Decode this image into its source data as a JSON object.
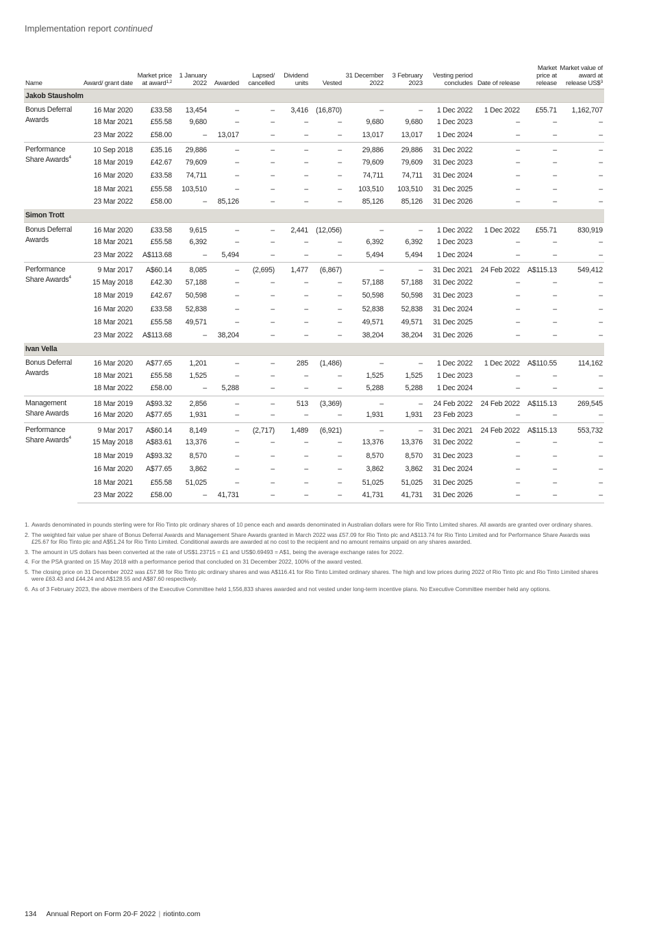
{
  "header": {
    "title": "Implementation report",
    "title_suffix": "continued"
  },
  "columns": [
    {
      "label": "Name",
      "sup": ""
    },
    {
      "label": "Award/ grant date",
      "sup": ""
    },
    {
      "label": "Market price at award",
      "sup": "1,2"
    },
    {
      "label": "1 January 2022",
      "sup": ""
    },
    {
      "label": "Awarded",
      "sup": ""
    },
    {
      "label": "Lapsed/ cancelled",
      "sup": ""
    },
    {
      "label": "Dividend units",
      "sup": ""
    },
    {
      "label": "Vested",
      "sup": ""
    },
    {
      "label": "31 December 2022",
      "sup": ""
    },
    {
      "label": "3 February 2023",
      "sup": ""
    },
    {
      "label": "Vesting period concludes",
      "sup": ""
    },
    {
      "label": "Date of release",
      "sup": ""
    },
    {
      "label": "Market price at release",
      "sup": ""
    },
    {
      "label": "Market value of award at release US$",
      "sup": "3"
    }
  ],
  "people": [
    {
      "name": "Jakob Stausholm",
      "groups": [
        {
          "name": "Bonus Deferral Awards",
          "sup": "",
          "rows": [
            [
              "16 Mar 2020",
              "£33.58",
              "13,454",
              "–",
              "–",
              "3,416",
              "(16,870)",
              "–",
              "–",
              "1 Dec 2022",
              "1 Dec 2022",
              "£55.71",
              "1,162,707"
            ],
            [
              "18 Mar 2021",
              "£55.58",
              "9,680",
              "–",
              "–",
              "–",
              "–",
              "9,680",
              "9,680",
              "1 Dec 2023",
              "–",
              "–",
              "–"
            ],
            [
              "23 Mar 2022",
              "£58.00",
              "–",
              "13,017",
              "–",
              "–",
              "–",
              "13,017",
              "13,017",
              "1 Dec 2024",
              "–",
              "–",
              "–"
            ]
          ]
        },
        {
          "name": "Performance Share Awards",
          "sup": "4",
          "rows": [
            [
              "10 Sep 2018",
              "£35.16",
              "29,886",
              "–",
              "–",
              "–",
              "–",
              "29,886",
              "29,886",
              "31 Dec 2022",
              "–",
              "–",
              "–"
            ],
            [
              "18 Mar 2019",
              "£42.67",
              "79,609",
              "–",
              "–",
              "–",
              "–",
              "79,609",
              "79,609",
              "31 Dec 2023",
              "–",
              "–",
              "–"
            ],
            [
              "16 Mar 2020",
              "£33.58",
              "74,711",
              "–",
              "–",
              "–",
              "–",
              "74,711",
              "74,711",
              "31 Dec 2024",
              "–",
              "–",
              "–"
            ],
            [
              "18 Mar 2021",
              "£55.58",
              "103,510",
              "–",
              "–",
              "–",
              "–",
              "103,510",
              "103,510",
              "31 Dec 2025",
              "–",
              "–",
              "–"
            ],
            [
              "23 Mar 2022",
              "£58.00",
              "–",
              "85,126",
              "–",
              "–",
              "–",
              "85,126",
              "85,126",
              "31 Dec 2026",
              "–",
              "–",
              "–"
            ]
          ]
        }
      ]
    },
    {
      "name": "Simon Trott",
      "groups": [
        {
          "name": "Bonus Deferral Awards",
          "sup": "",
          "rows": [
            [
              "16 Mar 2020",
              "£33.58",
              "9,615",
              "–",
              "–",
              "2,441",
              "(12,056)",
              "–",
              "–",
              "1 Dec 2022",
              "1 Dec 2022",
              "£55.71",
              "830,919"
            ],
            [
              "18 Mar 2021",
              "£55.58",
              "6,392",
              "–",
              "–",
              "–",
              "–",
              "6,392",
              "6,392",
              "1 Dec 2023",
              "–",
              "–",
              "–"
            ],
            [
              "23 Mar 2022",
              "A$113.68",
              "–",
              "5,494",
              "–",
              "–",
              "–",
              "5,494",
              "5,494",
              "1 Dec 2024",
              "–",
              "–",
              "–"
            ]
          ]
        },
        {
          "name": "Performance Share Awards",
          "sup": "4",
          "rows": [
            [
              "9 Mar 2017",
              "A$60.14",
              "8,085",
              "–",
              "(2,695)",
              "1,477",
              "(6,867)",
              "–",
              "–",
              "31 Dec 2021",
              "24 Feb 2022",
              "A$115.13",
              "549,412"
            ],
            [
              "15 May 2018",
              "£42.30",
              "57,188",
              "–",
              "–",
              "–",
              "–",
              "57,188",
              "57,188",
              "31 Dec 2022",
              "–",
              "–",
              "–"
            ],
            [
              "18 Mar 2019",
              "£42.67",
              "50,598",
              "–",
              "–",
              "–",
              "–",
              "50,598",
              "50,598",
              "31 Dec 2023",
              "–",
              "–",
              "–"
            ],
            [
              "16 Mar 2020",
              "£33.58",
              "52,838",
              "–",
              "–",
              "–",
              "–",
              "52,838",
              "52,838",
              "31 Dec 2024",
              "–",
              "–",
              "–"
            ],
            [
              "18 Mar 2021",
              "£55.58",
              "49,571",
              "–",
              "–",
              "–",
              "–",
              "49,571",
              "49,571",
              "31 Dec 2025",
              "–",
              "–",
              "–"
            ],
            [
              "23 Mar 2022",
              "A$113.68",
              "–",
              "38,204",
              "–",
              "–",
              "–",
              "38,204",
              "38,204",
              "31 Dec 2026",
              "–",
              "–",
              "–"
            ]
          ]
        }
      ]
    },
    {
      "name": "Ivan Vella",
      "groups": [
        {
          "name": "Bonus Deferral Awards",
          "sup": "",
          "rows": [
            [
              "16 Mar 2020",
              "A$77.65",
              "1,201",
              "–",
              "–",
              "285",
              "(1,486)",
              "–",
              "–",
              "1 Dec 2022",
              "1 Dec 2022",
              "A$110.55",
              "114,162"
            ],
            [
              "18 Mar 2021",
              "£55.58",
              "1,525",
              "–",
              "–",
              "–",
              "–",
              "1,525",
              "1,525",
              "1 Dec 2023",
              "–",
              "–",
              "–"
            ],
            [
              "18 Mar 2022",
              "£58.00",
              "–",
              "5,288",
              "–",
              "–",
              "–",
              "5,288",
              "5,288",
              "1 Dec 2024",
              "–",
              "–",
              "–"
            ]
          ]
        },
        {
          "name": "Management Share Awards",
          "sup": "",
          "rows": [
            [
              "18 Mar 2019",
              "A$93.32",
              "2,856",
              "–",
              "–",
              "513",
              "(3,369)",
              "–",
              "–",
              "24 Feb 2022",
              "24 Feb 2022",
              "A$115.13",
              "269,545"
            ],
            [
              "16 Mar 2020",
              "A$77.65",
              "1,931",
              "–",
              "–",
              "–",
              "–",
              "1,931",
              "1,931",
              "23 Feb 2023",
              "–",
              "–",
              "–"
            ]
          ]
        },
        {
          "name": "Performance Share Awards",
          "sup": "4",
          "rows": [
            [
              "9 Mar 2017",
              "A$60.14",
              "8,149",
              "–",
              "(2,717)",
              "1,489",
              "(6,921)",
              "–",
              "–",
              "31 Dec 2021",
              "24 Feb 2022",
              "A$115.13",
              "553,732"
            ],
            [
              "15 May 2018",
              "A$83.61",
              "13,376",
              "–",
              "–",
              "–",
              "–",
              "13,376",
              "13,376",
              "31 Dec 2022",
              "–",
              "–",
              "–"
            ],
            [
              "18 Mar 2019",
              "A$93.32",
              "8,570",
              "–",
              "–",
              "–",
              "–",
              "8,570",
              "8,570",
              "31 Dec 2023",
              "–",
              "–",
              "–"
            ],
            [
              "16 Mar 2020",
              "A$77.65",
              "3,862",
              "–",
              "–",
              "–",
              "–",
              "3,862",
              "3,862",
              "31 Dec 2024",
              "–",
              "–",
              "–"
            ],
            [
              "18 Mar 2021",
              "£55.58",
              "51,025",
              "–",
              "–",
              "–",
              "–",
              "51,025",
              "51,025",
              "31 Dec 2025",
              "–",
              "–",
              "–"
            ],
            [
              "23 Mar 2022",
              "£58.00",
              "–",
              "41,731",
              "–",
              "–",
              "–",
              "41,731",
              "41,731",
              "31 Dec 2026",
              "–",
              "–",
              "–"
            ]
          ]
        }
      ]
    }
  ],
  "footnotes": [
    {
      "num": "1.",
      "text": "Awards denominated in pounds sterling were for Rio Tinto plc ordinary shares of 10 pence each and awards denominated in Australian dollars were for Rio Tinto Limited shares. All awards are granted over ordinary shares."
    },
    {
      "num": "2.",
      "text": "The weighted fair value per share of Bonus Deferral Awards and Management Share Awards granted in March 2022 was £57.09 for Rio Tinto plc and A$113.74 for Rio Tinto Limited and for Performance Share Awards was £25.67 for Rio Tinto plc and A$51.24 for Rio Tinto Limited. Conditional awards are awarded at no cost to the recipient and no amount remains unpaid on any shares awarded."
    },
    {
      "num": "3.",
      "text": "The amount in US dollars has been converted at the rate of US$1.23715 = £1 and US$0.69493 = A$1, being the average exchange rates for 2022."
    },
    {
      "num": "4.",
      "text": "For the PSA granted on 15 May 2018 with a performance period that concluded on 31 December 2022, 100% of the award vested."
    },
    {
      "num": "5.",
      "text": "The closing price on 31 December 2022 was £57.98 for Rio Tinto plc ordinary shares and was A$116.41 for Rio Tinto Limited ordinary shares. The high and low prices during 2022 of Rio Tinto plc and Rio Tinto Limited shares were £63.43 and £44.24 and A$128.55 and A$87.60 respectively."
    },
    {
      "num": "6.",
      "text": "As of 3 February 2023, the above members of the Executive Committee held 1,556,833 shares awarded and not vested under long-term incentive plans. No Executive Committee member held any options."
    }
  ],
  "footer": {
    "page": "134",
    "report": "Annual Report on Form 20-F 2022",
    "site": "riotinto.com"
  }
}
